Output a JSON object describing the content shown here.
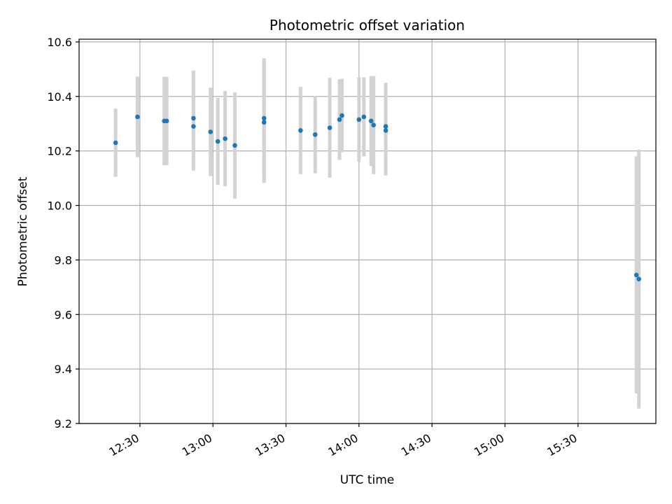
{
  "chart_data": {
    "type": "scatter",
    "title": "Photometric offset variation",
    "xlabel": "UTC time",
    "ylabel": "Photometric offset",
    "x_ticks": [
      "12:30",
      "13:00",
      "13:30",
      "14:00",
      "14:30",
      "15:00",
      "15:30"
    ],
    "y_ticks": [
      "9.2",
      "9.4",
      "9.6",
      "9.8",
      "10.0",
      "10.2",
      "10.4",
      "10.6"
    ],
    "xlim": [
      "12:05",
      "16:02"
    ],
    "ylim": [
      9.2,
      10.61
    ],
    "grid": true,
    "marker_color": "#1f77b4",
    "errorbar_color": "#d3d3d3",
    "points": [
      {
        "t": "12:20",
        "y": 10.23,
        "err": 0.125
      },
      {
        "t": "12:29",
        "y": 10.325,
        "err": 0.148
      },
      {
        "t": "12:40",
        "y": 10.31,
        "err": 0.162
      },
      {
        "t": "12:41",
        "y": 10.31,
        "err": 0.162
      },
      {
        "t": "12:52",
        "y": 10.29,
        "err": 0.162
      },
      {
        "t": "12:52",
        "y": 10.32,
        "err": 0.175
      },
      {
        "t": "12:59",
        "y": 10.27,
        "err": 0.162
      },
      {
        "t": "13:02",
        "y": 10.235,
        "err": 0.16
      },
      {
        "t": "13:05",
        "y": 10.245,
        "err": 0.175
      },
      {
        "t": "13:09",
        "y": 10.22,
        "err": 0.195
      },
      {
        "t": "13:21",
        "y": 10.305,
        "err": 0.222
      },
      {
        "t": "13:21",
        "y": 10.32,
        "err": 0.22
      },
      {
        "t": "13:36",
        "y": 10.275,
        "err": 0.16
      },
      {
        "t": "13:42",
        "y": 10.26,
        "err": 0.142
      },
      {
        "t": "13:48",
        "y": 10.285,
        "err": 0.183
      },
      {
        "t": "13:52",
        "y": 10.315,
        "err": 0.148
      },
      {
        "t": "13:53",
        "y": 10.33,
        "err": 0.135
      },
      {
        "t": "14:00",
        "y": 10.315,
        "err": 0.155
      },
      {
        "t": "14:02",
        "y": 10.325,
        "err": 0.145
      },
      {
        "t": "14:05",
        "y": 10.31,
        "err": 0.165
      },
      {
        "t": "14:06",
        "y": 10.295,
        "err": 0.18
      },
      {
        "t": "14:11",
        "y": 10.29,
        "err": 0.16
      },
      {
        "t": "14:11",
        "y": 10.275,
        "err": 0.165
      },
      {
        "t": "15:54",
        "y": 9.745,
        "err": 0.435
      },
      {
        "t": "15:55",
        "y": 9.73,
        "err": 0.475
      }
    ]
  }
}
